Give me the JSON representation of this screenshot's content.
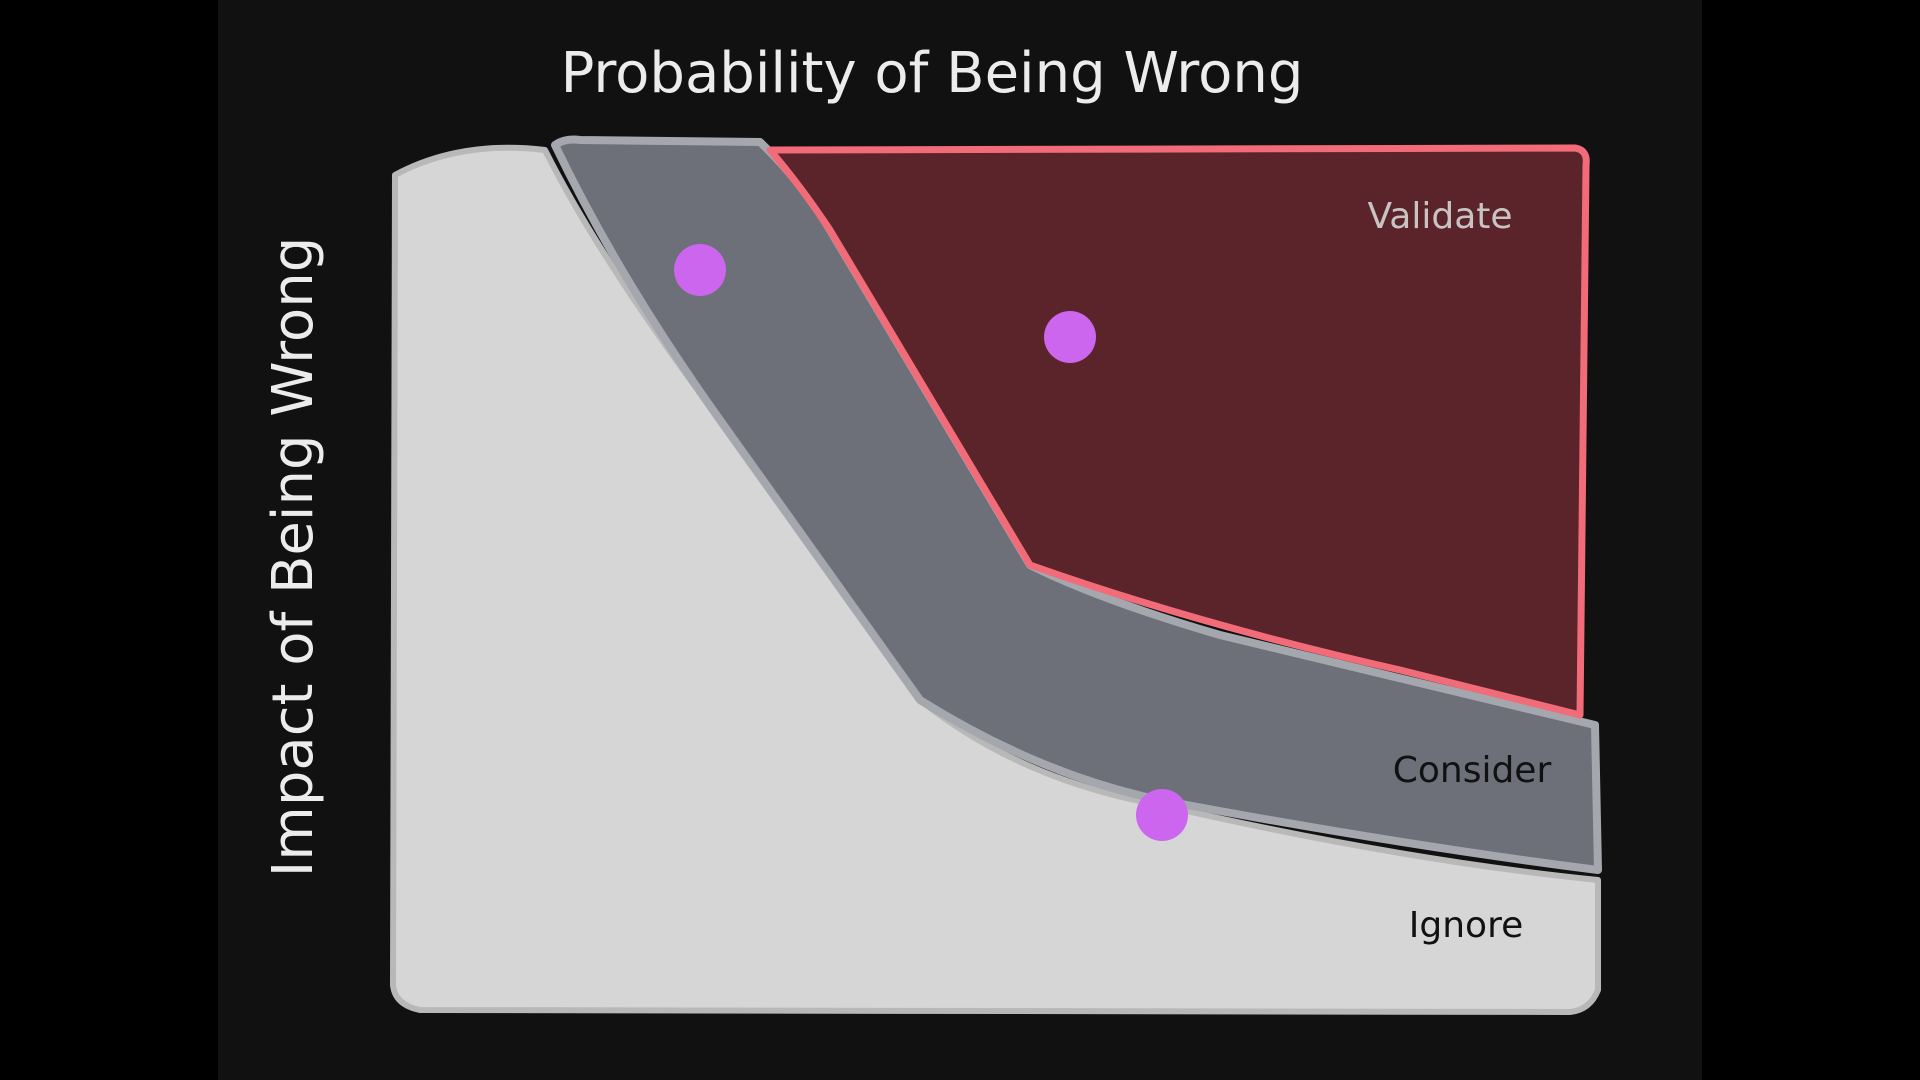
{
  "axes": {
    "x_label": "Probability of Being Wrong",
    "y_label": "Impact of Being Wrong"
  },
  "zones": {
    "validate": {
      "label": "Validate",
      "fill": "#5a242a",
      "stroke": "#f26b78"
    },
    "consider": {
      "label": "Consider",
      "fill": "#6d7079",
      "stroke": "#a4a8ae"
    },
    "ignore": {
      "label": "Ignore",
      "fill": "#d6d6d6",
      "stroke": "#b8b8b8"
    }
  },
  "colors": {
    "background": "#111111",
    "text_light": "#ececec",
    "text_dark": "#111111",
    "marker": "#cc66ee"
  },
  "markers": [
    {
      "zone": "consider"
    },
    {
      "zone": "validate"
    },
    {
      "zone": "ignore"
    }
  ]
}
